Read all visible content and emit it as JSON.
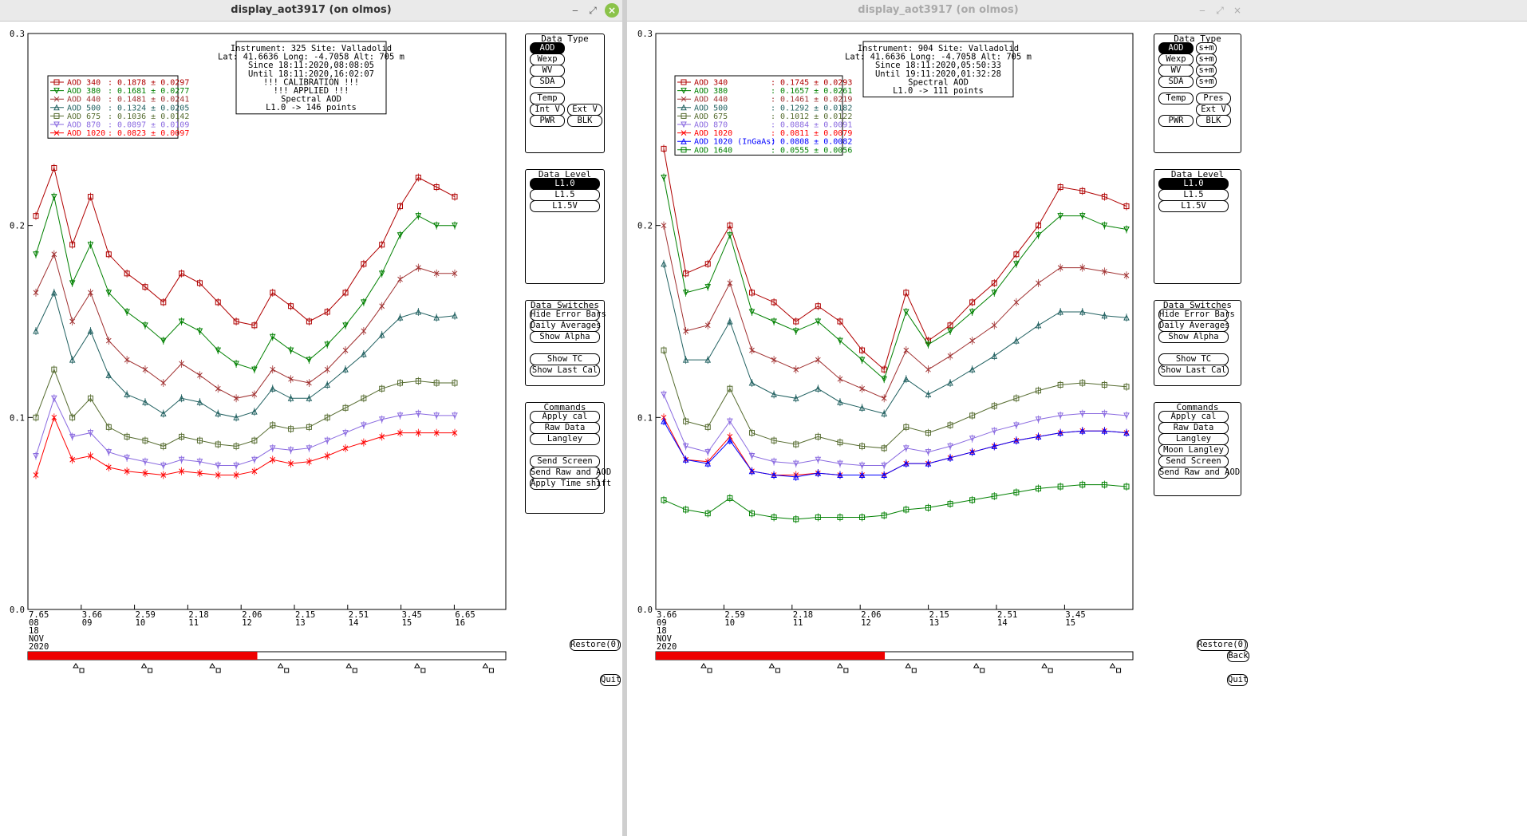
{
  "windows": [
    {
      "title": "display_aot3917 (on olmos)",
      "info": [
        "Instrument: 325 Site: Valladolid",
        "Lat: 41.6636 Long: -4.7058 Alt: 705 m",
        "Since 18:11:2020,08:08:05",
        "Until 18:11:2020,16:02:07",
        "!!! CALIBRATION !!!",
        "!!!   APPLIED   !!!",
        "Spectral AOD",
        "L1.0 -> 146 points"
      ],
      "legend": [
        {
          "label": "AOD 340",
          "value": ": 0.1878 ± 0.0297",
          "color": "#b00000"
        },
        {
          "label": "AOD 380",
          "value": ": 0.1681 ± 0.0277",
          "color": "#008000"
        },
        {
          "label": "AOD 440",
          "value": ": 0.1481 ± 0.0241",
          "color": "#a03030"
        },
        {
          "label": "AOD 500",
          "value": ": 0.1324 ± 0.0205",
          "color": "#206060"
        },
        {
          "label": "AOD 675",
          "value": ": 0.1036 ± 0.0142",
          "color": "#556b2f"
        },
        {
          "label": "AOD 870",
          "value": ": 0.0897 ± 0.0109",
          "color": "#8a6ae0"
        },
        {
          "label": "AOD 1020",
          "value": ": 0.0823 ± 0.0097",
          "color": "#ff0000"
        }
      ],
      "yticks": [
        "0.3",
        "0.2",
        "0.1",
        "0.0"
      ],
      "xticks": [
        [
          "7.65",
          "08"
        ],
        [
          "3.66",
          "09"
        ],
        [
          "2.59",
          "10"
        ],
        [
          "2.18",
          "11"
        ],
        [
          "2.06",
          "12"
        ],
        [
          "2.15",
          "13"
        ],
        [
          "2.51",
          "14"
        ],
        [
          "3.45",
          "15"
        ],
        [
          "6.65",
          "16"
        ]
      ],
      "date": [
        "18",
        "NOV",
        "2020"
      ],
      "data_type": {
        "title": "Data Type",
        "buttons": [
          "AOD",
          "Wexp",
          "WV",
          "SDA",
          "Temp",
          "Int V",
          "Ext V",
          "PWR",
          "BLK"
        ]
      },
      "data_level": {
        "title": "Data Level",
        "buttons": [
          "L1.0",
          "L1.5",
          "L1.5V"
        ]
      },
      "data_switches": {
        "title": "Data Switches",
        "buttons": [
          "Hide Error Bars",
          "Daily Averages",
          "Show Alpha",
          "Show TC",
          "Show Last Cal"
        ]
      },
      "commands": {
        "title": "Commands",
        "buttons": [
          "Apply cal",
          "Raw Data",
          "Langley",
          "Send Screen",
          "Send Raw and AOD",
          "Apply Time shift"
        ]
      },
      "restore": "Restore(0)",
      "quit": "Quit",
      "progress": 0.48
    },
    {
      "title": "display_aot3917 (on olmos)",
      "info": [
        "Instrument: 904 Site: Valladolid",
        "Lat: 41.6636 Long: -4.7058 Alt: 705 m",
        "Since 18:11:2020,05:50:33",
        "Until 19:11:2020,01:32:28",
        "Spectral AOD",
        "L1.0 -> 111 points"
      ],
      "legend": [
        {
          "label": "AOD 340",
          "value": ": 0.1745 ± 0.0293",
          "color": "#b00000"
        },
        {
          "label": "AOD 380",
          "value": ": 0.1657 ± 0.0261",
          "color": "#008000"
        },
        {
          "label": "AOD 440",
          "value": ": 0.1461 ± 0.0219",
          "color": "#a03030"
        },
        {
          "label": "AOD 500",
          "value": ": 0.1292 ± 0.0182",
          "color": "#206060"
        },
        {
          "label": "AOD 675",
          "value": ": 0.1012 ± 0.0122",
          "color": "#556b2f"
        },
        {
          "label": "AOD 870",
          "value": ": 0.0884 ± 0.0091",
          "color": "#8a6ae0"
        },
        {
          "label": "AOD 1020",
          "value": ": 0.0811 ± 0.0079",
          "color": "#ff0000"
        },
        {
          "label": "AOD 1020 (InGaAs)",
          "value": ": 0.0808 ± 0.0082",
          "color": "#0000ff"
        },
        {
          "label": "AOD 1640",
          "value": ": 0.0555 ± 0.0056",
          "color": "#008000"
        }
      ],
      "yticks": [
        "0.3",
        "0.2",
        "0.1",
        "0.0"
      ],
      "xticks": [
        [
          "3.66",
          "09"
        ],
        [
          "2.59",
          "10"
        ],
        [
          "2.18",
          "11"
        ],
        [
          "2.06",
          "12"
        ],
        [
          "2.15",
          "13"
        ],
        [
          "2.51",
          "14"
        ],
        [
          "3.45",
          "15"
        ]
      ],
      "date": [
        "18",
        "NOV",
        "2020"
      ],
      "data_type": {
        "title": "Data Type",
        "buttons": [
          "AOD",
          "Wexp",
          "WV",
          "SDA",
          "Temp",
          "Pres",
          "Ext V",
          "PWR",
          "BLK"
        ],
        "side": [
          "s+m",
          "s+m",
          "s+m",
          "s+m"
        ]
      },
      "data_level": {
        "title": "Data Level",
        "buttons": [
          "L1.0",
          "L1.5",
          "L1.5V"
        ]
      },
      "data_switches": {
        "title": "Data Switches",
        "buttons": [
          "Hide Error Bars",
          "Daily Averages",
          "Show Alpha",
          "Show TC",
          "Show Last Cal"
        ]
      },
      "commands": {
        "title": "Commands",
        "buttons": [
          "Apply cal",
          "Raw Data",
          "Langley",
          "Moon Langley",
          "Send Screen",
          "Send Raw and AOD"
        ]
      },
      "restore": "Restore(0)",
      "back": "Back",
      "quit": "Quit",
      "progress": 0.48
    }
  ],
  "chart_data": [
    {
      "type": "line",
      "xlabel": "",
      "ylabel": "",
      "ylim": [
        0,
        0.3
      ],
      "series": [
        {
          "name": "AOD 340",
          "color": "#b00000",
          "values": [
            0.205,
            0.23,
            0.19,
            0.215,
            0.185,
            0.175,
            0.168,
            0.16,
            0.175,
            0.17,
            0.16,
            0.15,
            0.148,
            0.165,
            0.158,
            0.15,
            0.155,
            0.165,
            0.18,
            0.19,
            0.21,
            0.225,
            0.22,
            0.215
          ]
        },
        {
          "name": "AOD 380",
          "color": "#008000",
          "values": [
            0.185,
            0.215,
            0.17,
            0.19,
            0.165,
            0.155,
            0.148,
            0.14,
            0.15,
            0.145,
            0.135,
            0.128,
            0.125,
            0.142,
            0.135,
            0.13,
            0.138,
            0.148,
            0.16,
            0.175,
            0.195,
            0.205,
            0.2,
            0.2
          ]
        },
        {
          "name": "AOD 440",
          "color": "#a03030",
          "values": [
            0.165,
            0.185,
            0.15,
            0.165,
            0.14,
            0.13,
            0.125,
            0.118,
            0.128,
            0.122,
            0.115,
            0.11,
            0.112,
            0.125,
            0.12,
            0.118,
            0.125,
            0.135,
            0.145,
            0.158,
            0.172,
            0.178,
            0.175,
            0.175
          ]
        },
        {
          "name": "AOD 500",
          "color": "#206060",
          "values": [
            0.145,
            0.165,
            0.13,
            0.145,
            0.122,
            0.112,
            0.108,
            0.102,
            0.11,
            0.108,
            0.102,
            0.1,
            0.103,
            0.115,
            0.11,
            0.11,
            0.117,
            0.125,
            0.133,
            0.143,
            0.152,
            0.155,
            0.152,
            0.153
          ]
        },
        {
          "name": "AOD 675",
          "color": "#556b2f",
          "values": [
            0.1,
            0.125,
            0.1,
            0.11,
            0.095,
            0.09,
            0.088,
            0.085,
            0.09,
            0.088,
            0.086,
            0.085,
            0.088,
            0.096,
            0.094,
            0.095,
            0.1,
            0.105,
            0.11,
            0.115,
            0.118,
            0.119,
            0.118,
            0.118
          ]
        },
        {
          "name": "AOD 870",
          "color": "#8a6ae0",
          "values": [
            0.08,
            0.11,
            0.09,
            0.092,
            0.082,
            0.079,
            0.077,
            0.075,
            0.078,
            0.077,
            0.075,
            0.075,
            0.078,
            0.084,
            0.083,
            0.084,
            0.088,
            0.092,
            0.096,
            0.099,
            0.101,
            0.102,
            0.101,
            0.101
          ]
        },
        {
          "name": "AOD 1020",
          "color": "#ff0000",
          "values": [
            0.07,
            0.1,
            0.078,
            0.08,
            0.074,
            0.072,
            0.071,
            0.07,
            0.072,
            0.071,
            0.07,
            0.07,
            0.072,
            0.078,
            0.076,
            0.077,
            0.08,
            0.084,
            0.087,
            0.09,
            0.092,
            0.092,
            0.092,
            0.092
          ]
        }
      ]
    },
    {
      "type": "line",
      "xlabel": "",
      "ylabel": "",
      "ylim": [
        0,
        0.3
      ],
      "series": [
        {
          "name": "AOD 340",
          "color": "#b00000",
          "values": [
            0.24,
            0.175,
            0.18,
            0.2,
            0.165,
            0.16,
            0.15,
            0.158,
            0.15,
            0.135,
            0.125,
            0.165,
            0.14,
            0.148,
            0.16,
            0.17,
            0.185,
            0.2,
            0.22,
            0.218,
            0.215,
            0.21
          ]
        },
        {
          "name": "AOD 380",
          "color": "#008000",
          "values": [
            0.225,
            0.165,
            0.168,
            0.195,
            0.155,
            0.15,
            0.145,
            0.15,
            0.14,
            0.13,
            0.12,
            0.155,
            0.138,
            0.145,
            0.155,
            0.165,
            0.18,
            0.195,
            0.205,
            0.205,
            0.2,
            0.198
          ]
        },
        {
          "name": "AOD 440",
          "color": "#a03030",
          "values": [
            0.2,
            0.145,
            0.148,
            0.17,
            0.135,
            0.13,
            0.125,
            0.13,
            0.12,
            0.115,
            0.11,
            0.135,
            0.125,
            0.132,
            0.14,
            0.148,
            0.16,
            0.17,
            0.178,
            0.178,
            0.176,
            0.174
          ]
        },
        {
          "name": "AOD 500",
          "color": "#206060",
          "values": [
            0.18,
            0.13,
            0.13,
            0.15,
            0.118,
            0.112,
            0.11,
            0.115,
            0.108,
            0.105,
            0.102,
            0.12,
            0.112,
            0.118,
            0.125,
            0.132,
            0.14,
            0.148,
            0.155,
            0.155,
            0.153,
            0.152
          ]
        },
        {
          "name": "AOD 675",
          "color": "#556b2f",
          "values": [
            0.135,
            0.098,
            0.095,
            0.115,
            0.092,
            0.088,
            0.086,
            0.09,
            0.087,
            0.085,
            0.084,
            0.095,
            0.092,
            0.096,
            0.101,
            0.106,
            0.11,
            0.114,
            0.117,
            0.118,
            0.117,
            0.116
          ]
        },
        {
          "name": "AOD 870",
          "color": "#8a6ae0",
          "values": [
            0.112,
            0.085,
            0.082,
            0.098,
            0.08,
            0.077,
            0.076,
            0.078,
            0.076,
            0.075,
            0.075,
            0.084,
            0.082,
            0.085,
            0.089,
            0.093,
            0.096,
            0.099,
            0.101,
            0.102,
            0.102,
            0.101
          ]
        },
        {
          "name": "AOD 1020",
          "color": "#ff0000",
          "values": [
            0.1,
            0.078,
            0.077,
            0.09,
            0.072,
            0.07,
            0.07,
            0.071,
            0.07,
            0.07,
            0.07,
            0.076,
            0.076,
            0.079,
            0.082,
            0.085,
            0.088,
            0.09,
            0.092,
            0.093,
            0.093,
            0.092
          ]
        },
        {
          "name": "AOD 1020 (InGaAs)",
          "color": "#0000ff",
          "values": [
            0.098,
            0.078,
            0.076,
            0.088,
            0.072,
            0.07,
            0.069,
            0.071,
            0.07,
            0.07,
            0.07,
            0.076,
            0.076,
            0.079,
            0.082,
            0.085,
            0.088,
            0.09,
            0.092,
            0.093,
            0.093,
            0.092
          ]
        },
        {
          "name": "AOD 1640",
          "color": "#008000",
          "values": [
            0.057,
            0.052,
            0.05,
            0.058,
            0.05,
            0.048,
            0.047,
            0.048,
            0.048,
            0.048,
            0.049,
            0.052,
            0.053,
            0.055,
            0.057,
            0.059,
            0.061,
            0.063,
            0.064,
            0.065,
            0.065,
            0.064
          ]
        }
      ]
    }
  ]
}
